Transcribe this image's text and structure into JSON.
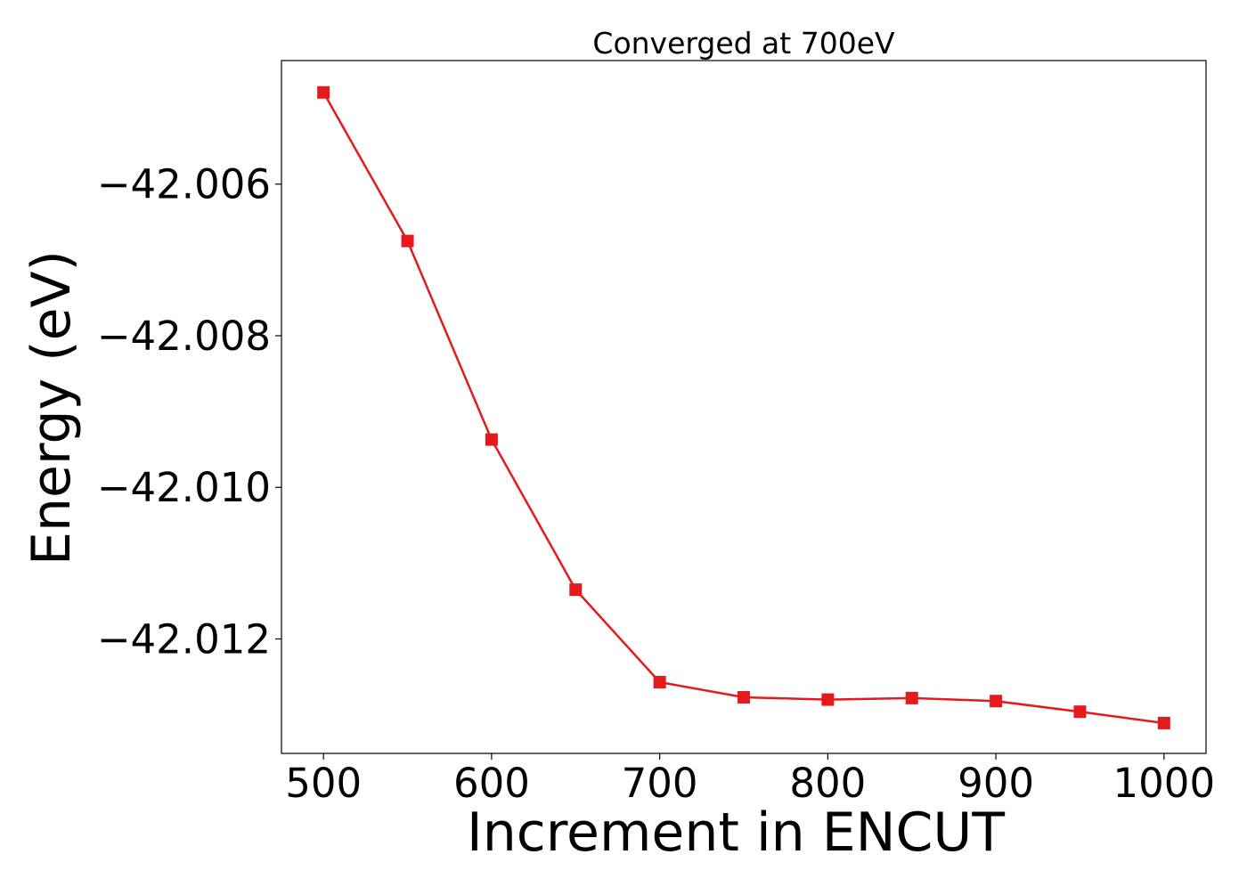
{
  "chart_data": {
    "type": "line",
    "title": "Converged at 700eV",
    "xlabel": "Increment in ENCUT",
    "ylabel": "Energy (eV)",
    "x": [
      500,
      550,
      600,
      650,
      700,
      750,
      800,
      850,
      900,
      950,
      1000
    ],
    "series": [
      {
        "values": [
          -42.00479,
          -42.00675,
          -42.00937,
          -42.01135,
          -42.01257,
          -42.01277,
          -42.0128,
          -42.01278,
          -42.01282,
          -42.01296,
          -42.01311
        ],
        "color": "#e41a1c",
        "marker": "square"
      }
    ],
    "xlim": [
      475,
      1025
    ],
    "ylim": [
      -42.01351,
      -42.00437
    ],
    "xticks": [
      500,
      600,
      700,
      800,
      900,
      1000
    ],
    "xtick_labels": [
      "500",
      "600",
      "700",
      "800",
      "900",
      "1000"
    ],
    "yticks": [
      -42.006,
      -42.008,
      -42.01,
      -42.012
    ],
    "ytick_labels": [
      "−42.006",
      "−42.008",
      "−42.010",
      "−42.012"
    ],
    "grid": false,
    "legend": "none"
  }
}
